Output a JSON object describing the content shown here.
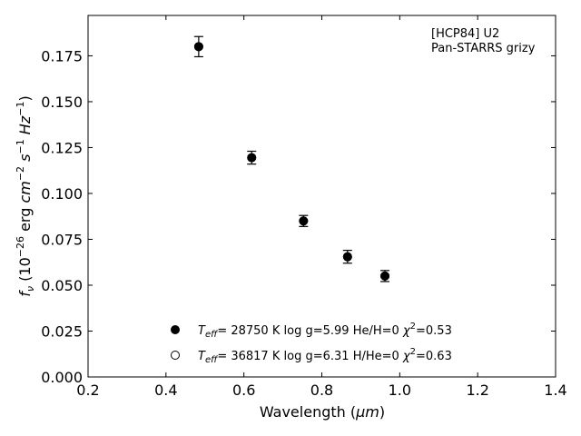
{
  "chart_data": {
    "type": "scatter",
    "xlabel_prefix": "Wavelength (",
    "xlabel_unit": "μm",
    "xlabel_suffix": ")",
    "ylabel": "f_ν (10^-26 erg cm^-2 s^-1 Hz^-1)",
    "xlim": [
      0.2,
      1.4
    ],
    "ylim": [
      0.0,
      0.197
    ],
    "xticks": [
      0.2,
      0.4,
      0.6,
      0.8,
      1.0,
      1.2,
      1.4
    ],
    "xtick_labels": [
      "0.2",
      "0.4",
      "0.6",
      "0.8",
      "1.0",
      "1.2",
      "1.4"
    ],
    "yticks": [
      0.0,
      0.025,
      0.05,
      0.075,
      0.1,
      0.125,
      0.15,
      0.175
    ],
    "ytick_labels": [
      "0.000",
      "0.025",
      "0.050",
      "0.075",
      "0.100",
      "0.125",
      "0.150",
      "0.175"
    ],
    "grid": false,
    "annotation": [
      "[HCP84] U2",
      "Pan-STARRS grizy"
    ],
    "series": [
      {
        "marker": "filled-circle",
        "points": [
          {
            "x": 0.484,
            "y": 0.18,
            "yerr": 0.0055
          },
          {
            "x": 0.62,
            "y": 0.1195,
            "yerr": 0.0035
          },
          {
            "x": 0.753,
            "y": 0.085,
            "yerr": 0.003
          },
          {
            "x": 0.866,
            "y": 0.0655,
            "yerr": 0.0035
          },
          {
            "x": 0.962,
            "y": 0.055,
            "yerr": 0.003
          }
        ]
      },
      {
        "marker": "open-circle",
        "points": [
          {
            "x": 0.484,
            "y": 0.18
          },
          {
            "x": 0.62,
            "y": 0.1195
          },
          {
            "x": 0.753,
            "y": 0.085
          },
          {
            "x": 0.866,
            "y": 0.0655
          },
          {
            "x": 0.962,
            "y": 0.055
          }
        ]
      }
    ],
    "legend": {
      "placement": "lower-center",
      "entries": [
        {
          "marker": "filled-circle",
          "teff": "= 28750 K",
          "logg": "log g=5.99",
          "comp": "He/H=0",
          "chi2": "=0.53"
        },
        {
          "marker": "open-circle",
          "teff": "= 36817 K",
          "logg": "log g=6.31",
          "comp": "H/He=0",
          "chi2": "=0.63"
        }
      ]
    }
  }
}
